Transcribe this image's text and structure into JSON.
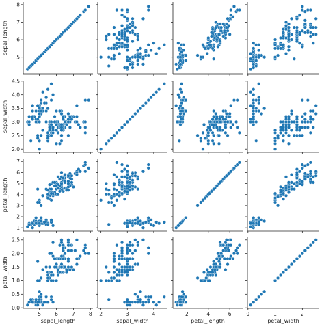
{
  "chart_data": {
    "type": "scatter",
    "kind": "pairplot",
    "variables": [
      "sepal_length",
      "sepal_width",
      "petal_length",
      "petal_width"
    ],
    "marker_color": "#1f77b4",
    "grid": false,
    "legend": "none",
    "axes": {
      "sepal_length": {
        "label": "sepal_length",
        "lim": [
          4.05,
          8.15
        ],
        "x_ticks": [
          5,
          6,
          7,
          8
        ],
        "y_ticks": [
          5,
          6,
          7,
          8
        ],
        "tick_labels": [
          "5",
          "6",
          "7",
          "8"
        ]
      },
      "sepal_width": {
        "label": "sepal_width",
        "lim": [
          1.88,
          4.52
        ],
        "x_ticks": [
          2,
          3,
          4
        ],
        "y_ticks": [
          2.0,
          2.5,
          3.0,
          3.5,
          4.0,
          4.5
        ],
        "x_tick_labels": [
          "2",
          "3",
          "4"
        ],
        "y_tick_labels": [
          "2.0",
          "2.5",
          "3.0",
          "3.5",
          "4.0",
          "4.5"
        ]
      },
      "petal_length": {
        "label": "petal_length",
        "lim": [
          0.7,
          7.2
        ],
        "x_ticks": [
          2,
          4,
          6
        ],
        "y_ticks": [
          1,
          2,
          3,
          4,
          5,
          6,
          7
        ],
        "x_tick_labels": [
          "2",
          "4",
          "6"
        ],
        "y_tick_labels": [
          "1",
          "2",
          "3",
          "4",
          "5",
          "6",
          "7"
        ]
      },
      "petal_width": {
        "label": "petal_width",
        "lim": [
          -0.02,
          2.62
        ],
        "x_ticks": [
          0,
          1,
          2
        ],
        "y_ticks": [
          0.0,
          0.5,
          1.0,
          1.5,
          2.0,
          2.5
        ],
        "x_tick_labels": [
          "0",
          "1",
          "2"
        ],
        "y_tick_labels": [
          "0.0",
          "0.5",
          "1.0",
          "1.5",
          "2.0",
          "2.5"
        ]
      }
    },
    "points": [
      [
        5.1,
        3.5,
        1.4,
        0.2
      ],
      [
        4.9,
        3.0,
        1.4,
        0.2
      ],
      [
        4.7,
        3.2,
        1.3,
        0.2
      ],
      [
        4.6,
        3.1,
        1.5,
        0.2
      ],
      [
        5.0,
        3.6,
        1.4,
        0.2
      ],
      [
        5.4,
        3.9,
        1.7,
        0.4
      ],
      [
        4.6,
        3.4,
        1.4,
        0.3
      ],
      [
        5.0,
        3.4,
        1.5,
        0.2
      ],
      [
        4.4,
        2.9,
        1.4,
        0.2
      ],
      [
        4.9,
        3.1,
        1.5,
        0.1
      ],
      [
        5.4,
        3.7,
        1.5,
        0.2
      ],
      [
        4.8,
        3.4,
        1.6,
        0.2
      ],
      [
        4.8,
        3.0,
        1.4,
        0.1
      ],
      [
        4.3,
        3.0,
        1.1,
        0.1
      ],
      [
        5.8,
        4.0,
        1.2,
        0.2
      ],
      [
        5.7,
        4.4,
        1.5,
        0.4
      ],
      [
        5.4,
        3.9,
        1.3,
        0.4
      ],
      [
        5.1,
        3.5,
        1.4,
        0.3
      ],
      [
        5.7,
        3.8,
        1.7,
        0.3
      ],
      [
        5.1,
        3.8,
        1.5,
        0.3
      ],
      [
        5.4,
        3.4,
        1.7,
        0.2
      ],
      [
        5.1,
        3.7,
        1.5,
        0.4
      ],
      [
        4.6,
        3.6,
        1.0,
        0.2
      ],
      [
        5.1,
        3.3,
        1.7,
        0.5
      ],
      [
        4.8,
        3.4,
        1.9,
        0.2
      ],
      [
        5.0,
        3.0,
        1.6,
        0.2
      ],
      [
        5.0,
        3.4,
        1.6,
        0.4
      ],
      [
        5.2,
        3.5,
        1.5,
        0.2
      ],
      [
        5.2,
        3.4,
        1.4,
        0.2
      ],
      [
        4.7,
        3.2,
        1.6,
        0.2
      ],
      [
        4.8,
        3.1,
        1.6,
        0.2
      ],
      [
        5.4,
        3.4,
        1.5,
        0.4
      ],
      [
        5.2,
        4.1,
        1.5,
        0.1
      ],
      [
        5.5,
        4.2,
        1.4,
        0.2
      ],
      [
        4.9,
        3.1,
        1.5,
        0.2
      ],
      [
        5.0,
        3.2,
        1.2,
        0.2
      ],
      [
        5.5,
        3.5,
        1.3,
        0.2
      ],
      [
        4.9,
        3.6,
        1.4,
        0.1
      ],
      [
        4.4,
        3.0,
        1.3,
        0.2
      ],
      [
        5.1,
        3.4,
        1.5,
        0.2
      ],
      [
        5.0,
        3.5,
        1.3,
        0.3
      ],
      [
        4.5,
        2.3,
        1.3,
        0.3
      ],
      [
        4.4,
        3.2,
        1.3,
        0.2
      ],
      [
        5.0,
        3.5,
        1.6,
        0.6
      ],
      [
        5.1,
        3.8,
        1.9,
        0.4
      ],
      [
        4.8,
        3.0,
        1.4,
        0.3
      ],
      [
        5.1,
        3.8,
        1.6,
        0.2
      ],
      [
        4.6,
        3.2,
        1.4,
        0.2
      ],
      [
        5.3,
        3.7,
        1.5,
        0.2
      ],
      [
        5.0,
        3.3,
        1.4,
        0.2
      ],
      [
        7.0,
        3.2,
        4.7,
        1.4
      ],
      [
        6.4,
        3.2,
        4.5,
        1.5
      ],
      [
        6.9,
        3.1,
        4.9,
        1.5
      ],
      [
        5.5,
        2.3,
        4.0,
        1.3
      ],
      [
        6.5,
        2.8,
        4.6,
        1.5
      ],
      [
        5.7,
        2.8,
        4.5,
        1.3
      ],
      [
        6.3,
        3.3,
        4.7,
        1.6
      ],
      [
        4.9,
        2.4,
        3.3,
        1.0
      ],
      [
        6.6,
        2.9,
        4.6,
        1.3
      ],
      [
        5.2,
        2.7,
        3.9,
        1.4
      ],
      [
        5.0,
        2.0,
        3.5,
        1.0
      ],
      [
        5.9,
        3.0,
        4.2,
        1.5
      ],
      [
        6.0,
        2.2,
        4.0,
        1.0
      ],
      [
        6.1,
        2.9,
        4.7,
        1.4
      ],
      [
        5.6,
        2.9,
        3.6,
        1.3
      ],
      [
        6.7,
        3.1,
        4.4,
        1.4
      ],
      [
        5.6,
        3.0,
        4.5,
        1.5
      ],
      [
        5.8,
        2.7,
        4.1,
        1.0
      ],
      [
        6.2,
        2.2,
        4.5,
        1.5
      ],
      [
        5.6,
        2.5,
        3.9,
        1.1
      ],
      [
        5.9,
        3.2,
        4.8,
        1.8
      ],
      [
        6.1,
        2.8,
        4.0,
        1.3
      ],
      [
        6.3,
        2.5,
        4.9,
        1.5
      ],
      [
        6.1,
        2.8,
        4.7,
        1.2
      ],
      [
        6.4,
        2.9,
        4.3,
        1.3
      ],
      [
        6.6,
        3.0,
        4.4,
        1.4
      ],
      [
        6.8,
        2.8,
        4.8,
        1.4
      ],
      [
        6.7,
        3.0,
        5.0,
        1.7
      ],
      [
        6.0,
        2.9,
        4.5,
        1.5
      ],
      [
        5.7,
        2.6,
        3.5,
        1.0
      ],
      [
        5.5,
        2.4,
        3.8,
        1.1
      ],
      [
        5.5,
        2.4,
        3.7,
        1.0
      ],
      [
        5.8,
        2.7,
        3.9,
        1.2
      ],
      [
        6.0,
        2.7,
        5.1,
        1.6
      ],
      [
        5.4,
        3.0,
        4.5,
        1.5
      ],
      [
        6.0,
        3.4,
        4.5,
        1.6
      ],
      [
        6.7,
        3.1,
        4.7,
        1.5
      ],
      [
        6.3,
        2.3,
        4.4,
        1.3
      ],
      [
        5.6,
        3.0,
        4.1,
        1.3
      ],
      [
        5.5,
        2.5,
        4.0,
        1.3
      ],
      [
        5.5,
        2.6,
        4.4,
        1.2
      ],
      [
        6.1,
        3.0,
        4.6,
        1.4
      ],
      [
        5.8,
        2.6,
        4.0,
        1.2
      ],
      [
        5.0,
        2.3,
        3.3,
        1.0
      ],
      [
        5.6,
        2.7,
        4.2,
        1.3
      ],
      [
        5.7,
        3.0,
        4.2,
        1.2
      ],
      [
        5.7,
        2.9,
        4.2,
        1.3
      ],
      [
        6.2,
        2.9,
        4.3,
        1.3
      ],
      [
        5.1,
        2.5,
        3.0,
        1.1
      ],
      [
        5.7,
        2.8,
        4.1,
        1.3
      ],
      [
        6.3,
        3.3,
        6.0,
        2.5
      ],
      [
        5.8,
        2.7,
        5.1,
        1.9
      ],
      [
        7.1,
        3.0,
        5.9,
        2.1
      ],
      [
        6.3,
        2.9,
        5.6,
        1.8
      ],
      [
        6.5,
        3.0,
        5.8,
        2.2
      ],
      [
        7.6,
        3.0,
        6.6,
        2.1
      ],
      [
        4.9,
        2.5,
        4.5,
        1.7
      ],
      [
        7.3,
        2.9,
        6.3,
        1.8
      ],
      [
        6.7,
        2.5,
        5.8,
        1.8
      ],
      [
        7.2,
        3.6,
        6.1,
        2.5
      ],
      [
        6.5,
        3.2,
        5.1,
        2.0
      ],
      [
        6.4,
        2.7,
        5.3,
        1.9
      ],
      [
        6.8,
        3.0,
        5.5,
        2.1
      ],
      [
        5.7,
        2.5,
        5.0,
        2.0
      ],
      [
        5.8,
        2.8,
        5.1,
        2.4
      ],
      [
        6.4,
        3.2,
        5.3,
        2.3
      ],
      [
        6.5,
        3.0,
        5.5,
        1.8
      ],
      [
        7.7,
        3.8,
        6.7,
        2.2
      ],
      [
        7.7,
        2.6,
        6.9,
        2.3
      ],
      [
        6.0,
        2.2,
        5.0,
        1.5
      ],
      [
        6.9,
        3.2,
        5.7,
        2.3
      ],
      [
        5.6,
        2.8,
        4.9,
        2.0
      ],
      [
        7.7,
        2.8,
        6.7,
        2.0
      ],
      [
        6.3,
        2.7,
        4.9,
        1.8
      ],
      [
        6.7,
        3.3,
        5.7,
        2.1
      ],
      [
        7.2,
        3.2,
        6.0,
        1.8
      ],
      [
        6.2,
        2.8,
        4.8,
        1.8
      ],
      [
        6.1,
        3.0,
        4.9,
        1.8
      ],
      [
        6.4,
        2.8,
        5.6,
        2.1
      ],
      [
        7.2,
        3.0,
        5.8,
        1.6
      ],
      [
        7.4,
        2.8,
        6.1,
        1.9
      ],
      [
        7.9,
        3.8,
        6.4,
        2.0
      ],
      [
        6.4,
        2.8,
        5.6,
        2.2
      ],
      [
        6.3,
        2.8,
        5.1,
        1.5
      ],
      [
        6.1,
        2.6,
        5.6,
        1.4
      ],
      [
        7.7,
        3.0,
        6.1,
        2.3
      ],
      [
        6.3,
        3.4,
        5.6,
        2.4
      ],
      [
        6.4,
        3.1,
        5.5,
        1.8
      ],
      [
        6.0,
        3.0,
        4.8,
        1.8
      ],
      [
        6.9,
        3.1,
        5.4,
        2.1
      ],
      [
        6.7,
        3.1,
        5.6,
        2.4
      ],
      [
        6.9,
        3.1,
        5.1,
        2.3
      ],
      [
        5.8,
        2.7,
        5.1,
        1.9
      ],
      [
        6.8,
        3.2,
        5.9,
        2.3
      ],
      [
        6.7,
        3.3,
        5.7,
        2.5
      ],
      [
        6.7,
        3.0,
        5.2,
        2.3
      ],
      [
        6.3,
        2.5,
        5.0,
        1.9
      ],
      [
        6.5,
        3.0,
        5.2,
        2.0
      ],
      [
        6.2,
        3.4,
        5.4,
        2.3
      ],
      [
        5.9,
        3.0,
        5.1,
        1.8
      ]
    ]
  }
}
